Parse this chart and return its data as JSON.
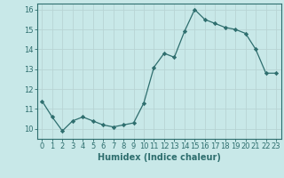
{
  "x": [
    0,
    1,
    2,
    3,
    4,
    5,
    6,
    7,
    8,
    9,
    10,
    11,
    12,
    13,
    14,
    15,
    16,
    17,
    18,
    19,
    20,
    21,
    22,
    23
  ],
  "y": [
    11.4,
    10.6,
    9.9,
    10.4,
    10.6,
    10.4,
    10.2,
    10.1,
    10.2,
    10.3,
    11.3,
    13.1,
    13.8,
    13.6,
    14.9,
    16.0,
    15.5,
    15.3,
    15.1,
    15.0,
    14.8,
    14.0,
    12.8,
    12.8
  ],
  "xlabel": "Humidex (Indice chaleur)",
  "ylim": [
    9.5,
    16.3
  ],
  "xlim": [
    -0.5,
    23.5
  ],
  "yticks": [
    10,
    11,
    12,
    13,
    14,
    15,
    16
  ],
  "xticks": [
    0,
    1,
    2,
    3,
    4,
    5,
    6,
    7,
    8,
    9,
    10,
    11,
    12,
    13,
    14,
    15,
    16,
    17,
    18,
    19,
    20,
    21,
    22,
    23
  ],
  "line_color": "#2e6e6e",
  "marker_color": "#2e6e6e",
  "bg_color": "#c8e8e8",
  "grid_color": "#b8d4d4",
  "tick_label_fontsize": 6.0,
  "xlabel_fontsize": 7.0
}
